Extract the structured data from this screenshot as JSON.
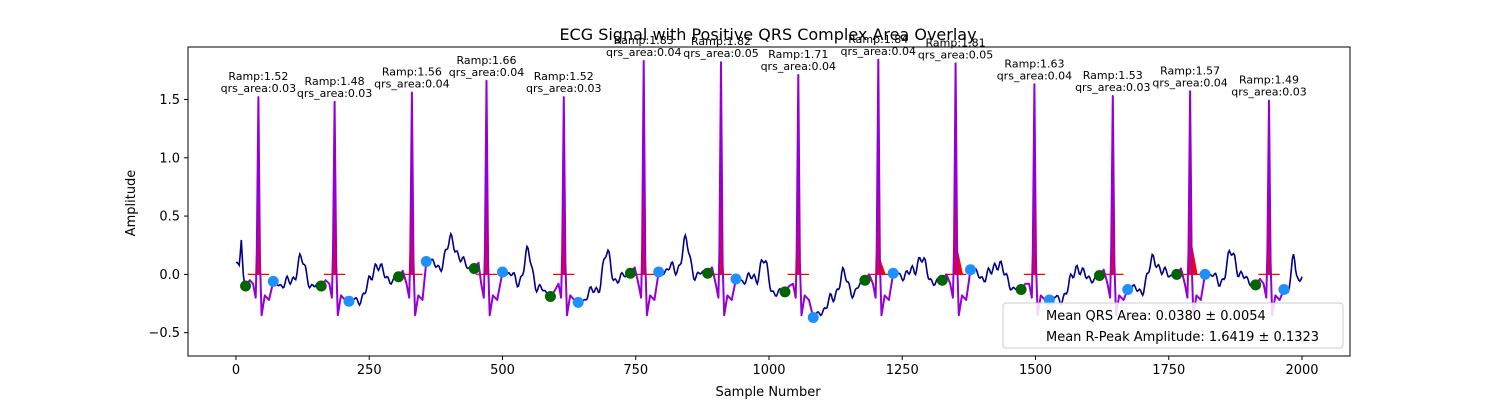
{
  "chart_data": {
    "type": "line",
    "title": "ECG Signal with Positive QRS Complex Area Overlay",
    "xlabel": "Sample Number",
    "ylabel": "Amplitude",
    "xlim": [
      -90,
      2090
    ],
    "ylim": [
      -0.7,
      1.95
    ],
    "xticks": [
      0,
      250,
      500,
      750,
      1000,
      1250,
      1500,
      1750,
      2000
    ],
    "yticks": [
      -0.5,
      0.0,
      0.5,
      1.0,
      1.5
    ],
    "xtick_labels": [
      "0",
      "250",
      "500",
      "750",
      "1000",
      "1250",
      "1500",
      "1750",
      "2000"
    ],
    "ytick_labels": [
      "−0.5",
      "0.0",
      "0.5",
      "1.0",
      "1.5"
    ],
    "grid": false,
    "colors": {
      "signal": "#00008b",
      "qrs_segment": "#9400d3",
      "area_fill": "#ff0000",
      "onset_marker": "#006400",
      "offset_marker": "#1e90ff"
    },
    "beats": [
      {
        "r_x": 42,
        "r_amp": 1.52,
        "onset_x": 18,
        "onset_y": -0.1,
        "offset_x": 70,
        "offset_y": -0.06,
        "ramp_label": "Ramp:1.52",
        "area_label": "qrs_area:0.03"
      },
      {
        "r_x": 185,
        "r_amp": 1.48,
        "onset_x": 160,
        "onset_y": -0.1,
        "offset_x": 212,
        "offset_y": -0.23,
        "ramp_label": "Ramp:1.48",
        "area_label": "qrs_area:0.03"
      },
      {
        "r_x": 330,
        "r_amp": 1.56,
        "onset_x": 305,
        "onset_y": -0.02,
        "offset_x": 357,
        "offset_y": 0.11,
        "ramp_label": "Ramp:1.56",
        "area_label": "qrs_area:0.04"
      },
      {
        "r_x": 470,
        "r_amp": 1.66,
        "onset_x": 447,
        "onset_y": 0.05,
        "offset_x": 500,
        "offset_y": 0.02,
        "ramp_label": "Ramp:1.66",
        "area_label": "qrs_area:0.04"
      },
      {
        "r_x": 615,
        "r_amp": 1.52,
        "onset_x": 590,
        "onset_y": -0.19,
        "offset_x": 642,
        "offset_y": -0.24,
        "ramp_label": "Ramp:1.52",
        "area_label": "qrs_area:0.03"
      },
      {
        "r_x": 765,
        "r_amp": 1.83,
        "onset_x": 740,
        "onset_y": 0.01,
        "offset_x": 793,
        "offset_y": 0.02,
        "ramp_label": "Ramp:1.83",
        "area_label": "qrs_area:0.04"
      },
      {
        "r_x": 910,
        "r_amp": 1.82,
        "onset_x": 885,
        "onset_y": 0.01,
        "offset_x": 938,
        "offset_y": -0.04,
        "ramp_label": "Ramp:1.82",
        "area_label": "qrs_area:0.05"
      },
      {
        "r_x": 1055,
        "r_amp": 1.71,
        "onset_x": 1030,
        "onset_y": -0.15,
        "offset_x": 1083,
        "offset_y": -0.37,
        "ramp_label": "Ramp:1.71",
        "area_label": "qrs_area:0.04"
      },
      {
        "r_x": 1205,
        "r_amp": 1.84,
        "onset_x": 1180,
        "onset_y": -0.05,
        "offset_x": 1233,
        "offset_y": 0.01,
        "ramp_label": "Ramp:1.84",
        "area_label": "qrs_area:0.04"
      },
      {
        "r_x": 1350,
        "r_amp": 1.81,
        "onset_x": 1325,
        "onset_y": -0.05,
        "offset_x": 1378,
        "offset_y": 0.04,
        "ramp_label": "Ramp:1.81",
        "area_label": "qrs_area:0.05"
      },
      {
        "r_x": 1498,
        "r_amp": 1.63,
        "onset_x": 1473,
        "onset_y": -0.13,
        "offset_x": 1526,
        "offset_y": -0.22,
        "ramp_label": "Ramp:1.63",
        "area_label": "qrs_area:0.04"
      },
      {
        "r_x": 1645,
        "r_amp": 1.53,
        "onset_x": 1620,
        "onset_y": -0.01,
        "offset_x": 1673,
        "offset_y": -0.13,
        "ramp_label": "Ramp:1.53",
        "area_label": "qrs_area:0.03"
      },
      {
        "r_x": 1790,
        "r_amp": 1.57,
        "onset_x": 1765,
        "onset_y": 0.0,
        "offset_x": 1818,
        "offset_y": 0.0,
        "ramp_label": "Ramp:1.57",
        "area_label": "qrs_area:0.04"
      },
      {
        "r_x": 1938,
        "r_amp": 1.49,
        "onset_x": 1913,
        "onset_y": -0.09,
        "offset_x": 1966,
        "offset_y": -0.13,
        "ramp_label": "Ramp:1.49",
        "area_label": "qrs_area:0.03"
      }
    ],
    "legend": {
      "placement": "lower right",
      "entries": [
        "Mean QRS Area: 0.0380 ± 0.0054",
        "Mean R-Peak Amplitude: 1.6419 ± 0.1323"
      ]
    }
  }
}
